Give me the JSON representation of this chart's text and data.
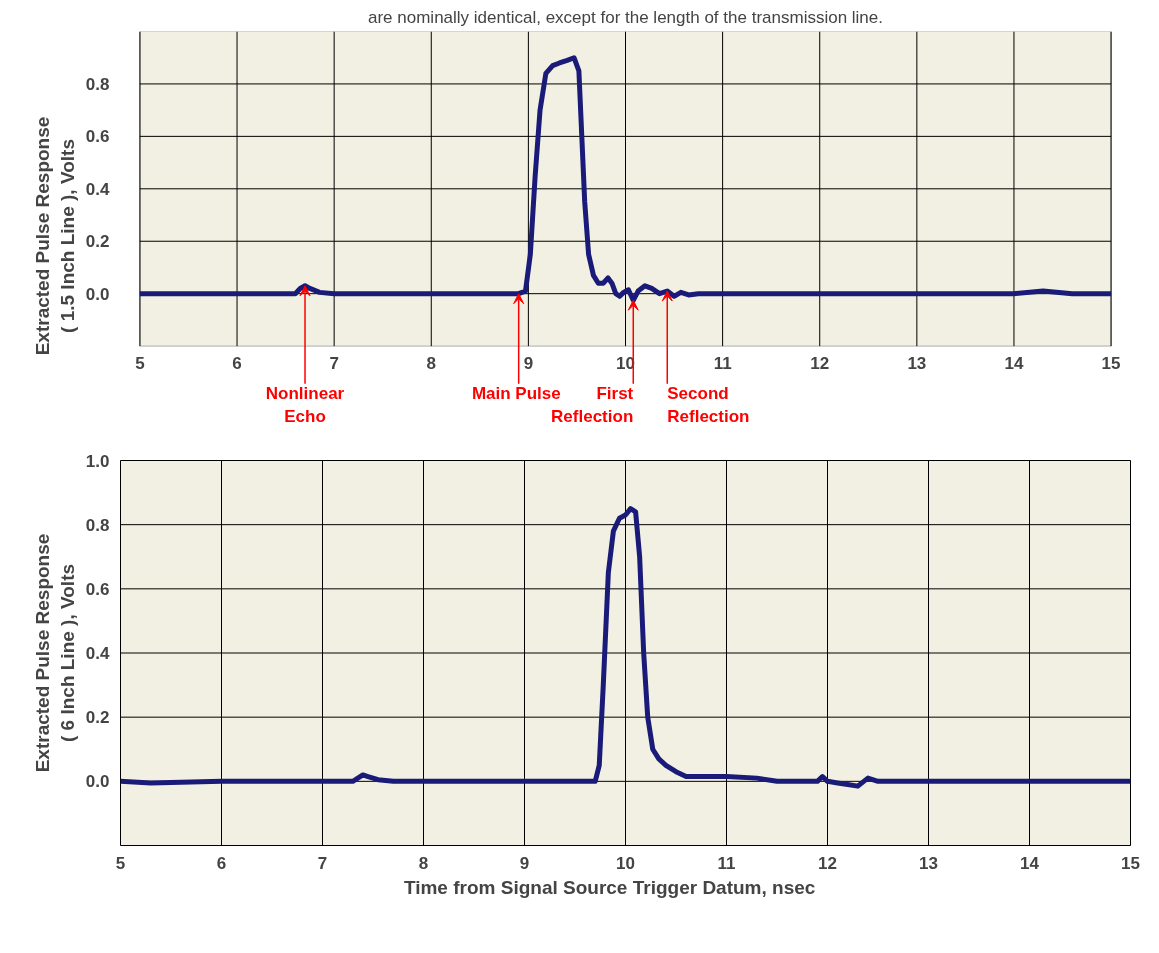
{
  "chart_data": [
    {
      "type": "line",
      "ylabel": "Extracted Pulse Response\n( 1.5 Inch Line ), Volts",
      "annotations": [
        "are nominally identical, except for the length of the transmission line.",
        {
          "text": "Nonlinear\nEcho",
          "x": 6.7,
          "y": 0.03
        },
        {
          "text": "Main  Pulse",
          "x": 8.9,
          "y": 0.0
        },
        {
          "text": "First\nReflection",
          "x": 10.08,
          "y": -0.025
        },
        {
          "text": "Second\nReflection",
          "x": 10.43,
          "y": 0.01
        }
      ],
      "xlim": [
        5,
        15
      ],
      "xticks": [
        5,
        6,
        7,
        8,
        9,
        10,
        11,
        12,
        13,
        14,
        15
      ],
      "ylim": [
        -0.2,
        1.0
      ],
      "yticks": [
        {
          "value": 0.0,
          "label": "0.0"
        },
        {
          "value": 0.2,
          "label": "0.2"
        },
        {
          "value": 0.4,
          "label": "0.4"
        },
        {
          "value": 0.6,
          "label": "0.6"
        },
        {
          "value": 0.8,
          "label": "0.8"
        }
      ],
      "grid": true,
      "series": [
        {
          "color": "#1a1a78",
          "x": [
            5,
            5.5,
            6,
            6.5,
            6.6,
            6.65,
            6.7,
            6.75,
            6.85,
            7,
            7.5,
            8,
            8.5,
            8.9,
            8.97,
            9.02,
            9.07,
            9.12,
            9.18,
            9.25,
            9.32,
            9.4,
            9.47,
            9.52,
            9.55,
            9.58,
            9.62,
            9.67,
            9.72,
            9.77,
            9.82,
            9.86,
            9.9,
            9.94,
            9.98,
            10.03,
            10.08,
            10.13,
            10.2,
            10.27,
            10.35,
            10.43,
            10.5,
            10.57,
            10.65,
            10.75,
            11,
            12,
            13,
            14,
            14.3,
            14.6,
            15
          ],
          "values": [
            0,
            0,
            0,
            0,
            0,
            0.02,
            0.03,
            0.02,
            0.005,
            0,
            0,
            0,
            0,
            0,
            0.01,
            0.15,
            0.45,
            0.7,
            0.84,
            0.87,
            0.88,
            0.89,
            0.9,
            0.85,
            0.6,
            0.35,
            0.15,
            0.07,
            0.04,
            0.04,
            0.06,
            0.04,
            0,
            -0.01,
            0.005,
            0.015,
            -0.025,
            0.01,
            0.03,
            0.02,
            0,
            0.01,
            -0.01,
            0.005,
            -0.005,
            0,
            0,
            0,
            0,
            0,
            0.01,
            0,
            0
          ]
        }
      ]
    },
    {
      "type": "line",
      "xlabel": "Time  from  Signal  Source  Trigger  Datum,  nsec",
      "ylabel": "Extracted Pulse Response\n( 6 Inch Line ), Volts",
      "xlim": [
        5,
        15
      ],
      "xticks": [
        5,
        6,
        7,
        8,
        9,
        10,
        11,
        12,
        13,
        14,
        15
      ],
      "ylim": [
        -0.2,
        1.0
      ],
      "yticks": [
        {
          "value": 0.0,
          "label": "0.0"
        },
        {
          "value": 0.2,
          "label": "0.2"
        },
        {
          "value": 0.4,
          "label": "0.4"
        },
        {
          "value": 0.6,
          "label": "0.6"
        },
        {
          "value": 0.8,
          "label": "0.8"
        },
        {
          "value": 1.0,
          "label": "1.0"
        }
      ],
      "grid": true,
      "series": [
        {
          "color": "#1a1a78",
          "x": [
            5,
            5.3,
            6,
            7,
            7.3,
            7.35,
            7.4,
            7.45,
            7.55,
            7.7,
            8,
            9,
            9.5,
            9.7,
            9.74,
            9.78,
            9.83,
            9.88,
            9.94,
            10.0,
            10.05,
            10.1,
            10.14,
            10.18,
            10.22,
            10.27,
            10.33,
            10.4,
            10.5,
            10.6,
            11,
            11.3,
            11.5,
            11.9,
            11.95,
            12.0,
            12.1,
            12.2,
            12.3,
            12.4,
            12.5,
            13,
            14,
            15
          ],
          "values": [
            0,
            -0.005,
            0,
            0,
            0,
            0.01,
            0.02,
            0.015,
            0.005,
            0,
            0,
            0,
            0,
            0,
            0.05,
            0.3,
            0.65,
            0.78,
            0.82,
            0.83,
            0.85,
            0.84,
            0.7,
            0.4,
            0.2,
            0.1,
            0.07,
            0.05,
            0.03,
            0.015,
            0.015,
            0.01,
            0,
            0,
            0.015,
            0,
            -0.005,
            -0.01,
            -0.015,
            0.01,
            0,
            0,
            0,
            0
          ]
        }
      ]
    }
  ]
}
